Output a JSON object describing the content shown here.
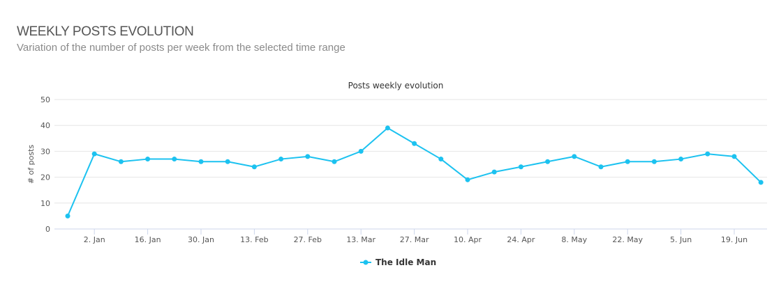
{
  "header": {
    "title": "WEEKLY POSTS EVOLUTION",
    "subtitle": "Variation of the number of posts per week from the selected time range"
  },
  "colors": {
    "series": "#1cc2f0",
    "grid": "#e6e6e6",
    "axis": "#ccd6eb"
  },
  "chart_data": {
    "type": "line",
    "title": "Posts weekly evolution",
    "xlabel": "",
    "ylabel": "# of posts",
    "ylim": [
      0,
      50
    ],
    "yticks": [
      0,
      10,
      20,
      30,
      40,
      50
    ],
    "grid": true,
    "legend_position": "bottom-center",
    "x_tick_labels": [
      "2. Jan",
      "16. Jan",
      "30. Jan",
      "13. Feb",
      "27. Feb",
      "13. Mar",
      "27. Mar",
      "10. Apr",
      "24. Apr",
      "8. May",
      "22. May",
      "5. Jun",
      "19. Jun"
    ],
    "series": [
      {
        "name": "The Idle Man",
        "values": [
          5,
          29,
          26,
          27,
          27,
          26,
          26,
          24,
          27,
          28,
          26,
          30,
          39,
          33,
          27,
          19,
          22,
          24,
          26,
          28,
          24,
          26,
          26,
          27,
          29,
          28,
          18
        ]
      }
    ]
  }
}
